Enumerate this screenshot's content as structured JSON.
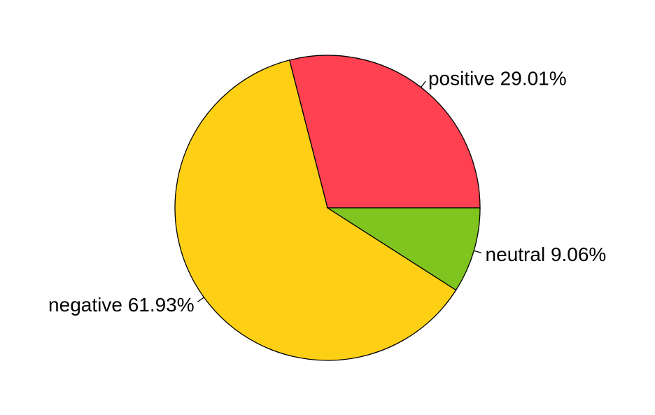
{
  "chart_data": {
    "type": "pie",
    "title": "",
    "start_angle_deg": 0,
    "direction": "counterclockwise",
    "slices": [
      {
        "name": "positive",
        "value": 29.01,
        "label": "positive 29.01%",
        "color": "#FF4151"
      },
      {
        "name": "negative",
        "value": 61.93,
        "label": "negative 61.93%",
        "color": "#FDD016"
      },
      {
        "name": "neutral",
        "value": 9.06,
        "label": "neutral 9.06%",
        "color": "#7FC41F"
      }
    ],
    "legend": "none"
  }
}
